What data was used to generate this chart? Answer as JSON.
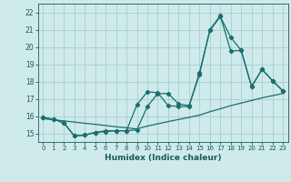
{
  "title": "",
  "xlabel": "Humidex (Indice chaleur)",
  "background_color": "#ceeaea",
  "grid_color": "#aacece",
  "line_color": "#1a6e6e",
  "xlim": [
    -0.5,
    23.5
  ],
  "ylim": [
    14.5,
    22.5
  ],
  "xticks": [
    0,
    1,
    2,
    3,
    4,
    5,
    6,
    7,
    8,
    9,
    10,
    11,
    12,
    13,
    14,
    15,
    16,
    17,
    18,
    19,
    20,
    21,
    22,
    23
  ],
  "yticks": [
    15,
    16,
    17,
    18,
    19,
    20,
    21,
    22
  ],
  "line1_x": [
    0,
    1,
    2,
    3,
    4,
    5,
    6,
    7,
    8,
    9,
    10,
    11,
    12,
    13,
    14,
    15,
    16,
    17,
    18,
    19,
    20,
    21,
    22,
    23
  ],
  "line1_y": [
    15.85,
    15.78,
    15.72,
    15.65,
    15.58,
    15.52,
    15.45,
    15.38,
    15.32,
    15.25,
    15.42,
    15.55,
    15.68,
    15.8,
    15.92,
    16.05,
    16.25,
    16.42,
    16.6,
    16.75,
    16.9,
    17.05,
    17.18,
    17.3
  ],
  "line2_x": [
    0,
    1,
    2,
    3,
    4,
    5,
    6,
    7,
    8,
    9,
    10,
    11,
    12,
    13,
    14,
    15,
    16,
    17,
    18,
    19,
    20,
    21,
    22,
    23
  ],
  "line2_y": [
    15.9,
    15.82,
    15.6,
    14.85,
    14.9,
    15.05,
    15.1,
    15.15,
    15.15,
    16.65,
    17.4,
    17.35,
    16.6,
    16.55,
    16.55,
    18.5,
    20.95,
    21.75,
    20.55,
    19.8,
    17.7,
    18.7,
    18.05,
    17.45
  ],
  "line3_x": [
    0,
    1,
    2,
    3,
    4,
    5,
    6,
    7,
    8,
    9,
    10,
    11,
    12,
    13,
    14,
    15,
    16,
    17,
    18,
    19,
    20,
    21,
    22,
    23
  ],
  "line3_y": [
    15.9,
    15.82,
    15.6,
    14.85,
    14.9,
    15.05,
    15.15,
    15.15,
    15.15,
    15.2,
    16.55,
    17.3,
    17.3,
    16.7,
    16.6,
    18.4,
    21.0,
    21.8,
    19.75,
    19.8,
    17.7,
    18.7,
    18.05,
    17.45
  ],
  "xlabel_fontsize": 6.5,
  "tick_fontsize": 5.5
}
